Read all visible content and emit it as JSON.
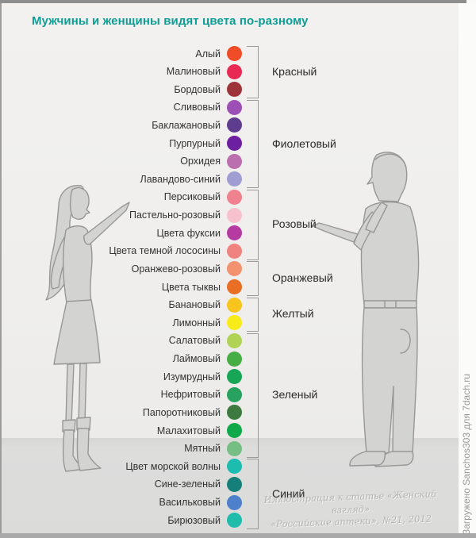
{
  "title": {
    "text": "Мужчины и женщины видят цвета по-разному",
    "color": "#0C9D95"
  },
  "colors": [
    {
      "name": "Алый",
      "hex": "#F04C28"
    },
    {
      "name": "Малиновый",
      "hex": "#E82953"
    },
    {
      "name": "Бордовый",
      "hex": "#9C3439"
    },
    {
      "name": "Сливовый",
      "hex": "#9C4FB5"
    },
    {
      "name": "Баклажановый",
      "hex": "#5E3D8F"
    },
    {
      "name": "Пурпурный",
      "hex": "#6C1FA0"
    },
    {
      "name": "Орхидея",
      "hex": "#BC6FAE"
    },
    {
      "name": "Лавандово-синий",
      "hex": "#9F9ED3"
    },
    {
      "name": "Персиковый",
      "hex": "#F08290"
    },
    {
      "name": "Пастельно-розовый",
      "hex": "#F6C1CD"
    },
    {
      "name": "Цвета фуксии",
      "hex": "#B53BA2"
    },
    {
      "name": "Цвета темной лососины",
      "hex": "#F0837E"
    },
    {
      "name": "Оранжево-розовый",
      "hex": "#F2926E"
    },
    {
      "name": "Цвета тыквы",
      "hex": "#EA6E24"
    },
    {
      "name": "Банановый",
      "hex": "#F7C51E"
    },
    {
      "name": "Лимонный",
      "hex": "#F7EC1A"
    },
    {
      "name": "Салатовый",
      "hex": "#B0D255"
    },
    {
      "name": "Лаймовый",
      "hex": "#47AD45"
    },
    {
      "name": "Изумрудный",
      "hex": "#17A656"
    },
    {
      "name": "Нефритовый",
      "hex": "#27A35F"
    },
    {
      "name": "Папоротниковый",
      "hex": "#3C7A40"
    },
    {
      "name": "Малахитовый",
      "hex": "#0FA94A"
    },
    {
      "name": "Мятный",
      "hex": "#76BF84"
    },
    {
      "name": "Цвет морской волны",
      "hex": "#1DBCB1"
    },
    {
      "name": "Сине-зеленый",
      "hex": "#177F79"
    },
    {
      "name": "Васильковый",
      "hex": "#4E80CC"
    },
    {
      "name": "Бирюзовый",
      "hex": "#1FBCAC"
    }
  ],
  "groups": [
    {
      "label": "Красный",
      "from": 0,
      "to": 2
    },
    {
      "label": "Фиолетовый",
      "from": 3,
      "to": 7
    },
    {
      "label": "Розовый",
      "from": 8,
      "to": 11
    },
    {
      "label": "Оранжевый",
      "from": 12,
      "to": 13
    },
    {
      "label": "Желтый",
      "from": 14,
      "to": 15
    },
    {
      "label": "Зеленый",
      "from": 16,
      "to": 22
    },
    {
      "label": "Синий",
      "from": 23,
      "to": 26
    }
  ],
  "watermark": {
    "line1": "Иллюстрация к статье «Женский взгляд»",
    "line2": "«Российские аптеки», №21, 2012"
  },
  "credit": {
    "text": "Загружено Sanchos303 для 7dach.ru"
  }
}
